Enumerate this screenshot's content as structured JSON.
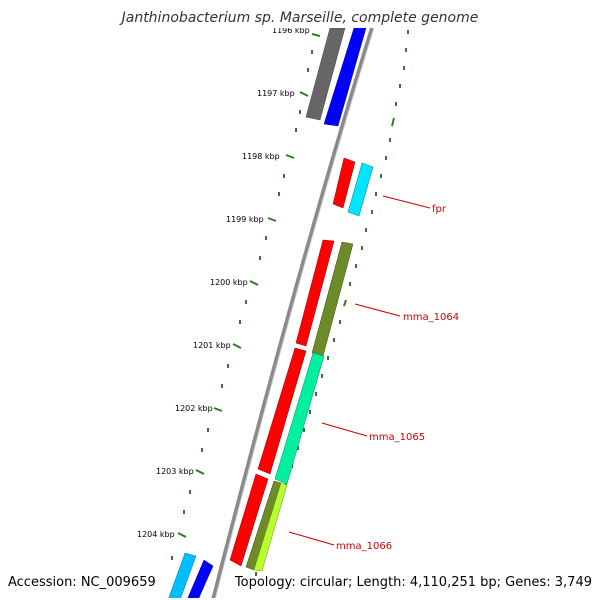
{
  "title": "Janthinobacterium sp. Marseille, complete genome",
  "footer": {
    "accession": "Accession: NC_009659",
    "topology": "Topology: circular; Length: 4,110,251 bp; Genes: 3,749"
  },
  "ticks": [
    {
      "label": "1196 kbp"
    },
    {
      "label": "1197 kbp"
    },
    {
      "label": "1198 kbp"
    },
    {
      "label": "1199 kbp"
    },
    {
      "label": "1200 kbp"
    },
    {
      "label": "1201 kbp"
    },
    {
      "label": "1202 kbp"
    },
    {
      "label": "1203 kbp"
    },
    {
      "label": "1204 kbp"
    }
  ],
  "gene_labels": [
    {
      "label": "fpr"
    },
    {
      "label": "mma_1064"
    },
    {
      "label": "mma_1065"
    },
    {
      "label": "mma_1066"
    }
  ],
  "colors": {
    "backbone": "#8a8a8a",
    "tick": "#2e7d22",
    "label_line": "#cc0000",
    "label_text": "#cc0000",
    "red": "#ff0000",
    "gray": "#666666",
    "blue": "#0000ff",
    "cyan": "#00e5ff",
    "olive": "#6e8b2a",
    "mint": "#00f0a0",
    "lime": "#b8ff30",
    "sky": "#00bfff"
  }
}
